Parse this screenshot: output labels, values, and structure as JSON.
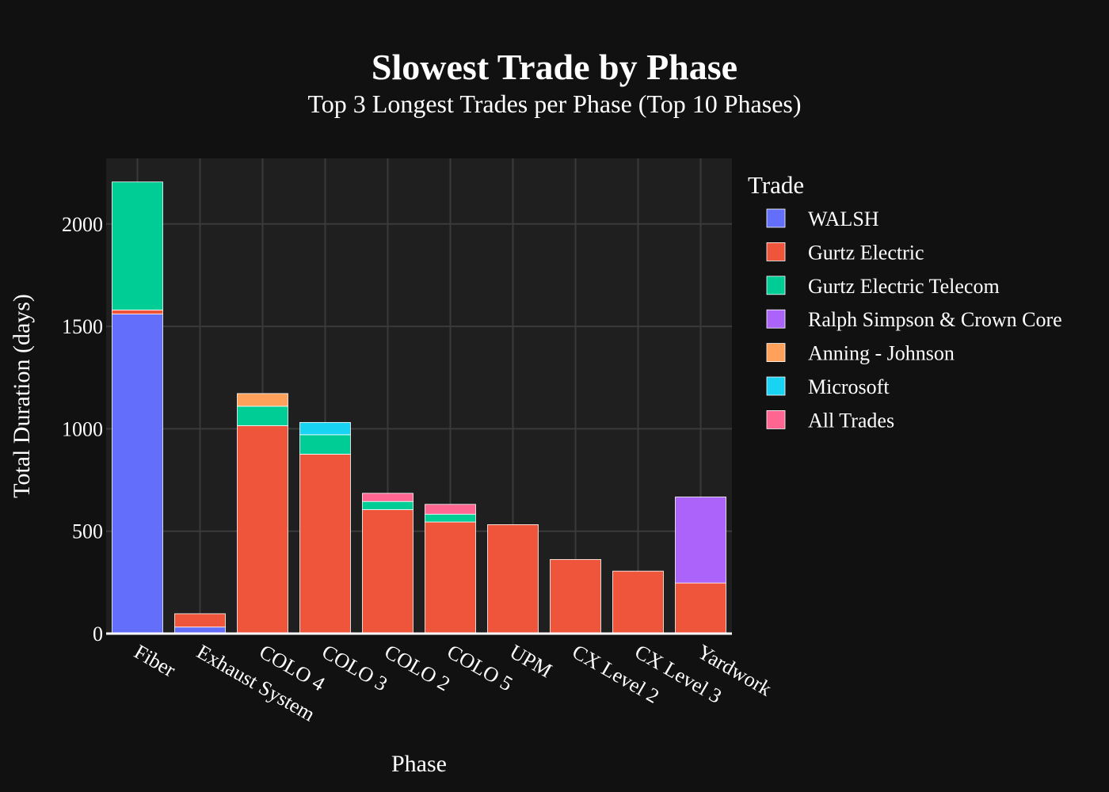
{
  "chart_data": {
    "type": "bar",
    "stacked": true,
    "title": "Slowest Trade by Phase",
    "subtitle": "Top 3 Longest Trades per Phase (Top 10 Phases)",
    "xlabel": "Phase",
    "ylabel": "Total Duration (days)",
    "ylim": [
      0,
      2320
    ],
    "yticks": [
      0,
      500,
      1000,
      1500,
      2000
    ],
    "grid": true,
    "legend_title": "Trade",
    "legend_position": "right",
    "categories": [
      "Fiber",
      "Exhaust System",
      "COLO 4",
      "COLO 3",
      "COLO 2",
      "COLO 5",
      "UPM",
      "CX Level 2",
      "CX Level 3",
      "Yardwork"
    ],
    "series": [
      {
        "name": "WALSH",
        "color": "#636efa",
        "values": [
          1560,
          32,
          0,
          0,
          0,
          0,
          0,
          0,
          0,
          0
        ]
      },
      {
        "name": "Gurtz Electric",
        "color": "#ef553b",
        "values": [
          20,
          65,
          1015,
          876,
          605,
          545,
          532,
          362,
          305,
          247
        ]
      },
      {
        "name": "Gurtz Electric Telecom",
        "color": "#00cc96",
        "values": [
          625,
          0,
          95,
          95,
          40,
          38,
          0,
          0,
          0,
          0
        ]
      },
      {
        "name": "Ralph Simpson & Crown Core",
        "color": "#ab63fa",
        "values": [
          0,
          0,
          0,
          0,
          0,
          0,
          0,
          0,
          0,
          420
        ]
      },
      {
        "name": "Anning - Johnson",
        "color": "#ffa15a",
        "values": [
          0,
          0,
          62,
          0,
          0,
          0,
          0,
          0,
          0,
          0
        ]
      },
      {
        "name": "Microsoft",
        "color": "#19d3f3",
        "values": [
          0,
          0,
          0,
          60,
          0,
          0,
          0,
          0,
          0,
          0
        ]
      },
      {
        "name": "All Trades",
        "color": "#ff6692",
        "values": [
          0,
          0,
          0,
          0,
          40,
          48,
          0,
          0,
          0,
          0
        ]
      }
    ]
  }
}
